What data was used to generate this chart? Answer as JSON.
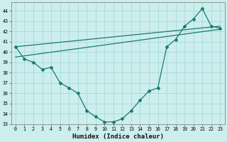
{
  "xlabel": "Humidex (Indice chaleur)",
  "background_color": "#cceeed",
  "grid_color": "#aadddd",
  "line_color": "#1a7a6e",
  "xlim": [
    -0.5,
    23.5
  ],
  "ylim": [
    33,
    44.8
  ],
  "yticks": [
    33,
    34,
    35,
    36,
    37,
    38,
    39,
    40,
    41,
    42,
    43,
    44
  ],
  "xticks": [
    0,
    1,
    2,
    3,
    4,
    5,
    6,
    7,
    8,
    9,
    10,
    11,
    12,
    13,
    14,
    15,
    16,
    17,
    18,
    19,
    20,
    21,
    22,
    23
  ],
  "hours": [
    0,
    1,
    2,
    3,
    4,
    5,
    6,
    7,
    8,
    9,
    10,
    11,
    12,
    13,
    14,
    15,
    16,
    17,
    18,
    19,
    20,
    21,
    22,
    23
  ],
  "line_main": [
    40.5,
    39.3,
    39.0,
    38.3,
    38.5,
    37.0,
    36.5,
    36.0,
    34.3,
    33.7,
    33.2,
    33.2,
    33.5,
    34.3,
    35.3,
    36.2,
    36.5,
    40.5,
    41.2,
    42.5,
    43.2,
    44.2,
    42.5,
    42.3
  ],
  "trend1_x": [
    0,
    23
  ],
  "trend1_y": [
    40.5,
    42.5
  ],
  "trend2_x": [
    0,
    23
  ],
  "trend2_y": [
    39.5,
    42.2
  ]
}
